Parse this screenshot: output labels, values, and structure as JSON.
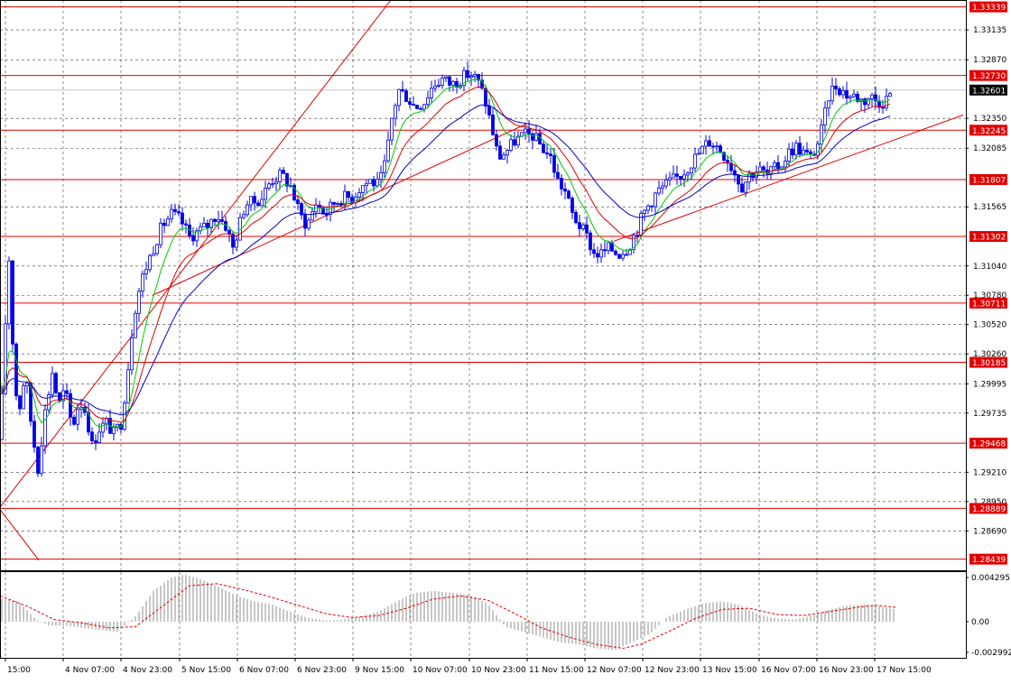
{
  "chart_data": {
    "type": "candlestick",
    "price_scale": {
      "ticks": [
        "1.33135",
        "1.32870",
        "1.32350",
        "1.32085",
        "1.31565",
        "1.31040",
        "1.30780",
        "1.30520",
        "1.30260",
        "1.29995",
        "1.29735",
        "1.29210",
        "1.28950",
        "1.28690"
      ],
      "ylim": [
        1.2834,
        1.334
      ]
    },
    "time_labels": [
      "15:00",
      "4 Nov 07:00",
      "4 Nov 23:00",
      "5 Nov 15:00",
      "6 Nov 07:00",
      "6 Nov 23:00",
      "9 Nov 15:00",
      "10 Nov 07:00",
      "10 Nov 23:00",
      "11 Nov 15:00",
      "12 Nov 07:00",
      "12 Nov 23:00",
      "13 Nov 15:00",
      "16 Nov 07:00",
      "16 Nov 23:00",
      "17 Nov 15:00"
    ],
    "horizontal_levels": [
      {
        "label": "1.33339",
        "value": 1.33339
      },
      {
        "label": "1.32730",
        "value": 1.3273
      },
      {
        "label": "1.32245",
        "value": 1.32245
      },
      {
        "label": "1.31807",
        "value": 1.31807
      },
      {
        "label": "1.31302",
        "value": 1.31302
      },
      {
        "label": "1.30711",
        "value": 1.30711
      },
      {
        "label": "1.30185",
        "value": 1.30185
      },
      {
        "label": "1.29468",
        "value": 1.29468
      },
      {
        "label": "1.28889",
        "value": 1.28889
      },
      {
        "label": "1.28439",
        "value": 1.28439
      }
    ],
    "current_price": {
      "label": "1.32601",
      "value": 1.32601
    },
    "trendlines": [
      {
        "from": [
          0,
          1.2888
        ],
        "to": [
          43,
          1.2843
        ]
      },
      {
        "from": [
          0,
          1.289
        ],
        "to": [
          433,
          1.334
        ]
      },
      {
        "from": [
          169,
          1.3078
        ],
        "to": [
          583,
          1.323
        ]
      },
      {
        "from": [
          680,
          1.3126
        ],
        "to": [
          1067,
          1.3238
        ]
      }
    ],
    "close_path": [
      [
        0,
        1.295
      ],
      [
        5,
        1.304
      ],
      [
        10,
        1.311
      ],
      [
        15,
        1.302
      ],
      [
        20,
        1.297
      ],
      [
        28,
        1.301
      ],
      [
        35,
        1.296
      ],
      [
        42,
        1.2925
      ],
      [
        50,
        1.2975
      ],
      [
        58,
        1.301
      ],
      [
        65,
        1.298
      ],
      [
        72,
        1.2995
      ],
      [
        80,
        1.296
      ],
      [
        88,
        1.2985
      ],
      [
        95,
        1.2975
      ],
      [
        102,
        1.2945
      ],
      [
        110,
        1.296
      ],
      [
        118,
        1.2965
      ],
      [
        126,
        1.2955
      ],
      [
        134,
        1.2965
      ],
      [
        140,
        1.3
      ],
      [
        148,
        1.306
      ],
      [
        156,
        1.309
      ],
      [
        165,
        1.311
      ],
      [
        172,
        1.3125
      ],
      [
        180,
        1.314
      ],
      [
        190,
        1.315
      ],
      [
        200,
        1.3145
      ],
      [
        210,
        1.313
      ],
      [
        220,
        1.3135
      ],
      [
        230,
        1.314
      ],
      [
        240,
        1.315
      ],
      [
        250,
        1.314
      ],
      [
        258,
        1.312
      ],
      [
        265,
        1.314
      ],
      [
        272,
        1.316
      ],
      [
        280,
        1.316
      ],
      [
        290,
        1.3165
      ],
      [
        300,
        1.318
      ],
      [
        312,
        1.3185
      ],
      [
        322,
        1.3175
      ],
      [
        332,
        1.315
      ],
      [
        340,
        1.314
      ],
      [
        350,
        1.316
      ],
      [
        360,
        1.315
      ],
      [
        370,
        1.316
      ],
      [
        380,
        1.3165
      ],
      [
        390,
        1.3165
      ],
      [
        400,
        1.3175
      ],
      [
        410,
        1.318
      ],
      [
        420,
        1.3175
      ],
      [
        428,
        1.32
      ],
      [
        435,
        1.324
      ],
      [
        442,
        1.326
      ],
      [
        450,
        1.3255
      ],
      [
        460,
        1.3245
      ],
      [
        470,
        1.325
      ],
      [
        480,
        1.3265
      ],
      [
        490,
        1.327
      ],
      [
        500,
        1.3265
      ],
      [
        510,
        1.327
      ],
      [
        520,
        1.3275
      ],
      [
        528,
        1.327
      ],
      [
        536,
        1.3255
      ],
      [
        544,
        1.323
      ],
      [
        552,
        1.32
      ],
      [
        560,
        1.3205
      ],
      [
        570,
        1.3215
      ],
      [
        580,
        1.322
      ],
      [
        590,
        1.322
      ],
      [
        600,
        1.321
      ],
      [
        610,
        1.32
      ],
      [
        618,
        1.318
      ],
      [
        626,
        1.317
      ],
      [
        634,
        1.315
      ],
      [
        642,
        1.314
      ],
      [
        650,
        1.313
      ],
      [
        658,
        1.3115
      ],
      [
        666,
        1.3115
      ],
      [
        675,
        1.312
      ],
      [
        685,
        1.3115
      ],
      [
        695,
        1.312
      ],
      [
        705,
        1.3135
      ],
      [
        712,
        1.315
      ],
      [
        720,
        1.316
      ],
      [
        728,
        1.317
      ],
      [
        736,
        1.3175
      ],
      [
        745,
        1.318
      ],
      [
        755,
        1.3185
      ],
      [
        765,
        1.3195
      ],
      [
        775,
        1.3205
      ],
      [
        785,
        1.3215
      ],
      [
        795,
        1.321
      ],
      [
        805,
        1.32
      ],
      [
        815,
        1.3185
      ],
      [
        822,
        1.3175
      ],
      [
        830,
        1.3185
      ],
      [
        840,
        1.319
      ],
      [
        850,
        1.3185
      ],
      [
        858,
        1.319
      ],
      [
        866,
        1.3195
      ],
      [
        874,
        1.3205
      ],
      [
        882,
        1.321
      ],
      [
        890,
        1.3205
      ],
      [
        898,
        1.32
      ],
      [
        905,
        1.321
      ],
      [
        912,
        1.323
      ],
      [
        918,
        1.3255
      ],
      [
        925,
        1.3265
      ],
      [
        932,
        1.326
      ],
      [
        940,
        1.3255
      ],
      [
        948,
        1.3255
      ],
      [
        956,
        1.325
      ],
      [
        964,
        1.3255
      ],
      [
        972,
        1.325
      ],
      [
        980,
        1.325
      ],
      [
        988,
        1.326
      ]
    ],
    "ma_periods": [
      8,
      16,
      30
    ],
    "oscillator": {
      "ticks": [
        "0.004295",
        "0.00",
        "-0.002992"
      ],
      "ylim": [
        -0.002992,
        0.004295
      ],
      "hist": [
        [
          0,
          0.0022
        ],
        [
          20,
          0.002
        ],
        [
          40,
          0.0002
        ],
        [
          55,
          -0.0004
        ],
        [
          75,
          -0.0004
        ],
        [
          100,
          -0.0007
        ],
        [
          130,
          -0.001
        ],
        [
          150,
          0.0005
        ],
        [
          170,
          0.003
        ],
        [
          190,
          0.0043
        ],
        [
          205,
          0.0046
        ],
        [
          220,
          0.0042
        ],
        [
          240,
          0.0035
        ],
        [
          260,
          0.0026
        ],
        [
          280,
          0.002
        ],
        [
          300,
          0.0017
        ],
        [
          320,
          0.001
        ],
        [
          340,
          0.0004
        ],
        [
          360,
          0.0001
        ],
        [
          380,
          0.0002
        ],
        [
          400,
          0.0005
        ],
        [
          420,
          0.001
        ],
        [
          440,
          0.002
        ],
        [
          460,
          0.0028
        ],
        [
          480,
          0.003
        ],
        [
          500,
          0.0028
        ],
        [
          520,
          0.0026
        ],
        [
          540,
          0.0018
        ],
        [
          560,
          -0.0005
        ],
        [
          580,
          -0.001
        ],
        [
          600,
          -0.0015
        ],
        [
          620,
          -0.002
        ],
        [
          640,
          -0.0022
        ],
        [
          660,
          -0.0026
        ],
        [
          680,
          -0.0028
        ],
        [
          700,
          -0.002
        ],
        [
          720,
          -0.0012
        ],
        [
          740,
          0.0005
        ],
        [
          760,
          0.0012
        ],
        [
          780,
          0.0018
        ],
        [
          800,
          0.002
        ],
        [
          820,
          0.0016
        ],
        [
          840,
          0.0007
        ],
        [
          860,
          0.0003
        ],
        [
          880,
          0.0002
        ],
        [
          900,
          0.0006
        ],
        [
          920,
          0.0012
        ],
        [
          940,
          0.0016
        ],
        [
          960,
          0.0017
        ],
        [
          980,
          0.0014
        ],
        [
          992,
          0.0012
        ]
      ],
      "signal": [
        [
          0,
          0.0025
        ],
        [
          30,
          0.0015
        ],
        [
          60,
          0.0002
        ],
        [
          90,
          -0.0001
        ],
        [
          120,
          -0.0006
        ],
        [
          150,
          -0.0005
        ],
        [
          180,
          0.0015
        ],
        [
          210,
          0.0035
        ],
        [
          240,
          0.0037
        ],
        [
          270,
          0.0031
        ],
        [
          300,
          0.0024
        ],
        [
          330,
          0.0016
        ],
        [
          360,
          0.0008
        ],
        [
          390,
          0.0004
        ],
        [
          420,
          0.0006
        ],
        [
          450,
          0.0013
        ],
        [
          480,
          0.0022
        ],
        [
          510,
          0.0025
        ],
        [
          540,
          0.0021
        ],
        [
          570,
          0.0008
        ],
        [
          600,
          -0.0006
        ],
        [
          630,
          -0.0015
        ],
        [
          660,
          -0.0022
        ],
        [
          690,
          -0.0026
        ],
        [
          710,
          -0.0022
        ],
        [
          740,
          -0.001
        ],
        [
          770,
          0.0003
        ],
        [
          800,
          0.0012
        ],
        [
          830,
          0.0013
        ],
        [
          860,
          0.0007
        ],
        [
          890,
          0.0006
        ],
        [
          920,
          0.001
        ],
        [
          950,
          0.0014
        ],
        [
          970,
          0.0016
        ],
        [
          992,
          0.0014
        ]
      ]
    },
    "colors": {
      "candles": "#0000e6",
      "levels": "#e00000",
      "trend": "#e00000",
      "ma_fast": "#00cc00",
      "ma_mid": "#e00000",
      "ma_slow": "#0000c8",
      "label_bg": "#e00000",
      "label_text": "#ffffff",
      "current_bg": "#000000",
      "osc_hist": "#b4b4b4",
      "osc_signal": "#e00000"
    }
  }
}
